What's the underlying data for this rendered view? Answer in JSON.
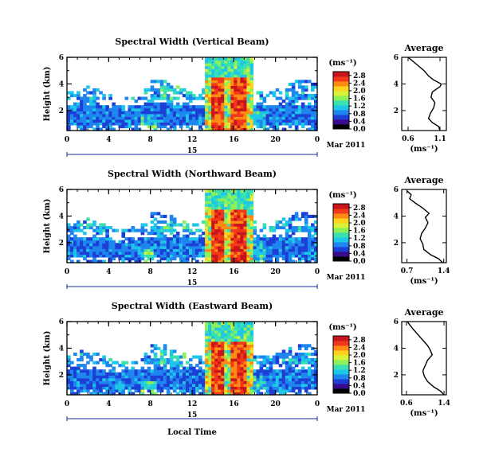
{
  "chart_data": [
    {
      "type": "heatmap",
      "title": "Spectral Width (Vertical Beam)",
      "ylabel": "Height (km)",
      "xlabel": "",
      "x_ticks": [
        "0",
        "4",
        "8",
        "12",
        "16",
        "20",
        "0"
      ],
      "y_ticks": [
        "2",
        "4",
        "6"
      ],
      "xlim": [
        0,
        24
      ],
      "ylim": [
        0.5,
        6
      ],
      "date_day": "15",
      "date_label": "Mar 2011",
      "colorbar": {
        "unit_label": "(ms⁻¹)",
        "ticks": [
          "0.0",
          "0.4",
          "0.8",
          "1.2",
          "1.6",
          "2.0",
          "2.4",
          "2.8"
        ],
        "range": [
          0,
          3.0
        ],
        "colors": [
          "#000000",
          "#3a0a8c",
          "#1d3fd6",
          "#1f86f0",
          "#1ec6e8",
          "#3be0b0",
          "#8cf05a",
          "#d8f23a",
          "#ffd21e",
          "#ff8a14",
          "#f2381a",
          "#c8141c"
        ]
      },
      "average_profile": {
        "title": "Average",
        "xlabel": "(ms⁻¹)",
        "x_ticks": [
          "0.6",
          "1.1"
        ],
        "xlim": [
          0.5,
          1.2
        ],
        "y_ticks": [
          "2",
          "4",
          "6"
        ],
        "ylim": [
          0.5,
          6
        ],
        "height": [
          0.5,
          0.8,
          1.1,
          1.4,
          1.8,
          2.2,
          2.6,
          3.0,
          3.4,
          3.8,
          4.0,
          4.3,
          4.6,
          5.0,
          5.4,
          5.8,
          6.0
        ],
        "value": [
          1.1,
          1.08,
          0.98,
          0.92,
          0.95,
          1.0,
          1.02,
          0.96,
          0.98,
          1.1,
          1.12,
          1.0,
          0.92,
          0.85,
          0.75,
          0.65,
          0.6
        ]
      }
    },
    {
      "type": "heatmap",
      "title": "Spectral Width (Northward Beam)",
      "ylabel": "Height (km)",
      "xlabel": "",
      "x_ticks": [
        "0",
        "4",
        "8",
        "12",
        "16",
        "20",
        "0"
      ],
      "y_ticks": [
        "2",
        "4",
        "6"
      ],
      "xlim": [
        0,
        24
      ],
      "ylim": [
        0.5,
        6
      ],
      "date_day": "15",
      "date_label": "Mar 2011",
      "colorbar": {
        "unit_label": "(ms⁻¹)",
        "ticks": [
          "0.0",
          "0.4",
          "0.8",
          "1.2",
          "1.6",
          "2.0",
          "2.4",
          "2.8"
        ],
        "range": [
          0,
          3.0
        ],
        "colors": [
          "#000000",
          "#3a0a8c",
          "#1d3fd6",
          "#1f86f0",
          "#1ec6e8",
          "#3be0b0",
          "#8cf05a",
          "#d8f23a",
          "#ffd21e",
          "#ff8a14",
          "#f2381a",
          "#c8141c"
        ]
      },
      "average_profile": {
        "title": "Average",
        "xlabel": "(ms⁻¹)",
        "x_ticks": [
          "0.7",
          "1.4"
        ],
        "xlim": [
          0.6,
          1.45
        ],
        "y_ticks": [
          "2",
          "4",
          "6"
        ],
        "ylim": [
          0.5,
          6
        ],
        "height": [
          0.5,
          0.8,
          1.1,
          1.5,
          1.9,
          2.3,
          2.7,
          3.1,
          3.5,
          3.9,
          4.2,
          4.6,
          5.0,
          5.3,
          5.6,
          5.9
        ],
        "value": [
          1.38,
          1.3,
          1.15,
          1.02,
          1.0,
          0.95,
          0.98,
          1.05,
          1.1,
          1.05,
          1.12,
          1.0,
          0.85,
          0.75,
          0.78,
          0.7
        ]
      }
    },
    {
      "type": "heatmap",
      "title": "Spectral Width (Eastward Beam)",
      "ylabel": "Height (km)",
      "xlabel": "Local Time",
      "x_ticks": [
        "0",
        "4",
        "8",
        "12",
        "16",
        "20",
        "0"
      ],
      "y_ticks": [
        "2",
        "4",
        "6"
      ],
      "xlim": [
        0,
        24
      ],
      "ylim": [
        0.5,
        6
      ],
      "date_day": "15",
      "date_label": "Mar 2011",
      "colorbar": {
        "unit_label": "(ms⁻¹)",
        "ticks": [
          "0.0",
          "0.4",
          "0.8",
          "1.2",
          "1.6",
          "2.0",
          "2.4",
          "2.8"
        ],
        "range": [
          0,
          3.0
        ],
        "colors": [
          "#000000",
          "#3a0a8c",
          "#1d3fd6",
          "#1f86f0",
          "#1ec6e8",
          "#3be0b0",
          "#8cf05a",
          "#d8f23a",
          "#ffd21e",
          "#ff8a14",
          "#f2381a",
          "#c8141c"
        ]
      },
      "average_profile": {
        "title": "Average",
        "xlabel": "(ms⁻¹)",
        "x_ticks": [
          "0.6",
          "1.4"
        ],
        "xlim": [
          0.5,
          1.45
        ],
        "y_ticks": [
          "2",
          "4",
          "6"
        ],
        "ylim": [
          0.5,
          6
        ],
        "height": [
          0.5,
          0.8,
          1.1,
          1.5,
          1.9,
          2.3,
          2.7,
          3.1,
          3.5,
          3.9,
          4.2,
          4.6,
          5.0,
          5.4,
          5.8,
          6.0
        ],
        "value": [
          1.4,
          1.32,
          1.18,
          1.05,
          0.98,
          0.95,
          1.0,
          1.05,
          1.15,
          1.1,
          1.05,
          0.95,
          0.85,
          0.75,
          0.66,
          0.62
        ]
      }
    }
  ]
}
